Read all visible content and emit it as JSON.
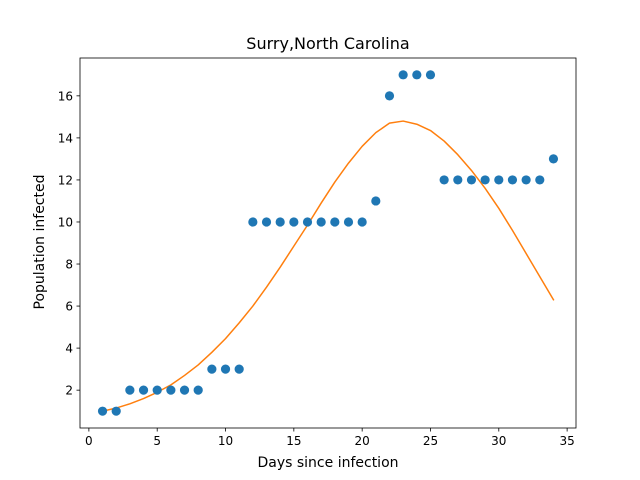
{
  "chart_data": {
    "type": "scatter",
    "title": "Surry,North Carolina",
    "xlabel": "Days since infection",
    "ylabel": "Population infected",
    "xlim": [
      -0.65,
      35.65
    ],
    "ylim": [
      0.2,
      17.8
    ],
    "x_ticks": [
      0,
      5,
      10,
      15,
      20,
      25,
      30,
      35
    ],
    "y_ticks": [
      2,
      4,
      6,
      8,
      10,
      12,
      14,
      16
    ],
    "grid": false,
    "series": [
      {
        "kind": "scatter",
        "color": "#1f77b4",
        "x": [
          1,
          2,
          3,
          4,
          5,
          6,
          7,
          8,
          9,
          10,
          11,
          12,
          13,
          14,
          15,
          16,
          17,
          18,
          19,
          20,
          21,
          22,
          23,
          24,
          25,
          26,
          27,
          28,
          29,
          30,
          31,
          32,
          33,
          34
        ],
        "y": [
          1,
          1,
          2,
          2,
          2,
          2,
          2,
          2,
          3,
          3,
          3,
          10,
          10,
          10,
          10,
          10,
          10,
          10,
          10,
          10,
          11,
          16,
          17,
          17,
          17,
          12,
          12,
          12,
          12,
          12,
          12,
          12,
          12,
          13
        ]
      },
      {
        "kind": "line",
        "color": "#ff7f0e",
        "x": [
          1,
          2,
          3,
          4,
          5,
          6,
          7,
          8,
          9,
          10,
          11,
          12,
          13,
          14,
          15,
          16,
          17,
          18,
          19,
          20,
          21,
          22,
          23,
          24,
          25,
          26,
          27,
          28,
          29,
          30,
          31,
          32,
          33,
          34
        ],
        "y": [
          1.0,
          1.15,
          1.35,
          1.6,
          1.9,
          2.25,
          2.7,
          3.2,
          3.8,
          4.45,
          5.2,
          6.0,
          6.9,
          7.85,
          8.85,
          9.85,
          10.9,
          11.9,
          12.8,
          13.6,
          14.25,
          14.7,
          14.8,
          14.65,
          14.35,
          13.85,
          13.2,
          12.45,
          11.6,
          10.65,
          9.6,
          8.5,
          7.4,
          6.3
        ],
        "y_override": [
          1.0,
          1.15,
          1.35,
          1.6,
          1.9,
          2.25,
          2.7,
          3.2,
          3.8,
          4.45,
          5.2,
          6.0,
          6.9,
          7.85,
          8.85,
          9.85,
          10.9,
          11.9,
          12.8,
          13.6,
          14.25,
          14.7,
          14.8,
          14.65,
          14.35,
          13.85,
          13.2,
          12.45,
          11.6,
          10.65,
          9.6,
          8.5,
          7.4,
          6.3
        ]
      }
    ]
  }
}
